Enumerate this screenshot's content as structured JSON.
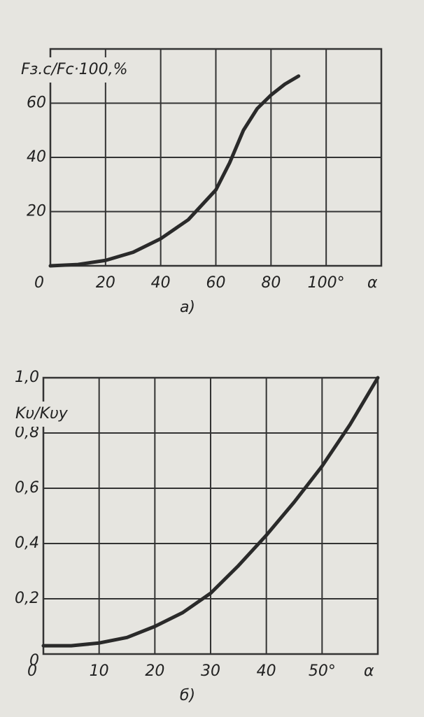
{
  "chart_data": [
    {
      "type": "line",
      "caption": "а)",
      "x_label": "α",
      "y_label": "Fз.с/Fс·100,%",
      "xlim": [
        0,
        120
      ],
      "ylim": [
        0,
        80
      ],
      "xticks": [
        0,
        20,
        40,
        60,
        80,
        {
          "value": 100,
          "label": "100°"
        }
      ],
      "yticks": [
        0,
        20,
        40,
        60
      ],
      "grid": true,
      "color": "#2a2a2a",
      "x": [
        0,
        10,
        20,
        30,
        40,
        50,
        60,
        65,
        70,
        75,
        80,
        85,
        90
      ],
      "values": [
        0,
        0.5,
        2,
        5,
        10,
        17,
        28,
        38,
        50,
        58,
        63,
        67,
        70
      ]
    },
    {
      "type": "line",
      "caption": "б)",
      "x_label": "α",
      "y_label": "Kυ/Kυy",
      "xlim": [
        0,
        60
      ],
      "ylim": [
        0,
        1.0
      ],
      "xticks": [
        0,
        10,
        20,
        30,
        40,
        {
          "value": 50,
          "label": "50°"
        }
      ],
      "yticks": [
        0,
        {
          "value": 0.2,
          "label": "0,2"
        },
        {
          "value": 0.4,
          "label": "0,4"
        },
        {
          "value": 0.6,
          "label": "0,6"
        },
        {
          "value": 0.8,
          "label": "0,8"
        },
        {
          "value": 1.0,
          "label": "1,0"
        }
      ],
      "grid": true,
      "color": "#2a2a2a",
      "x": [
        0,
        5,
        10,
        15,
        20,
        25,
        30,
        35,
        40,
        45,
        50,
        55,
        60
      ],
      "values": [
        0.03,
        0.03,
        0.04,
        0.06,
        0.1,
        0.15,
        0.22,
        0.32,
        0.43,
        0.55,
        0.68,
        0.83,
        1.0
      ]
    }
  ]
}
